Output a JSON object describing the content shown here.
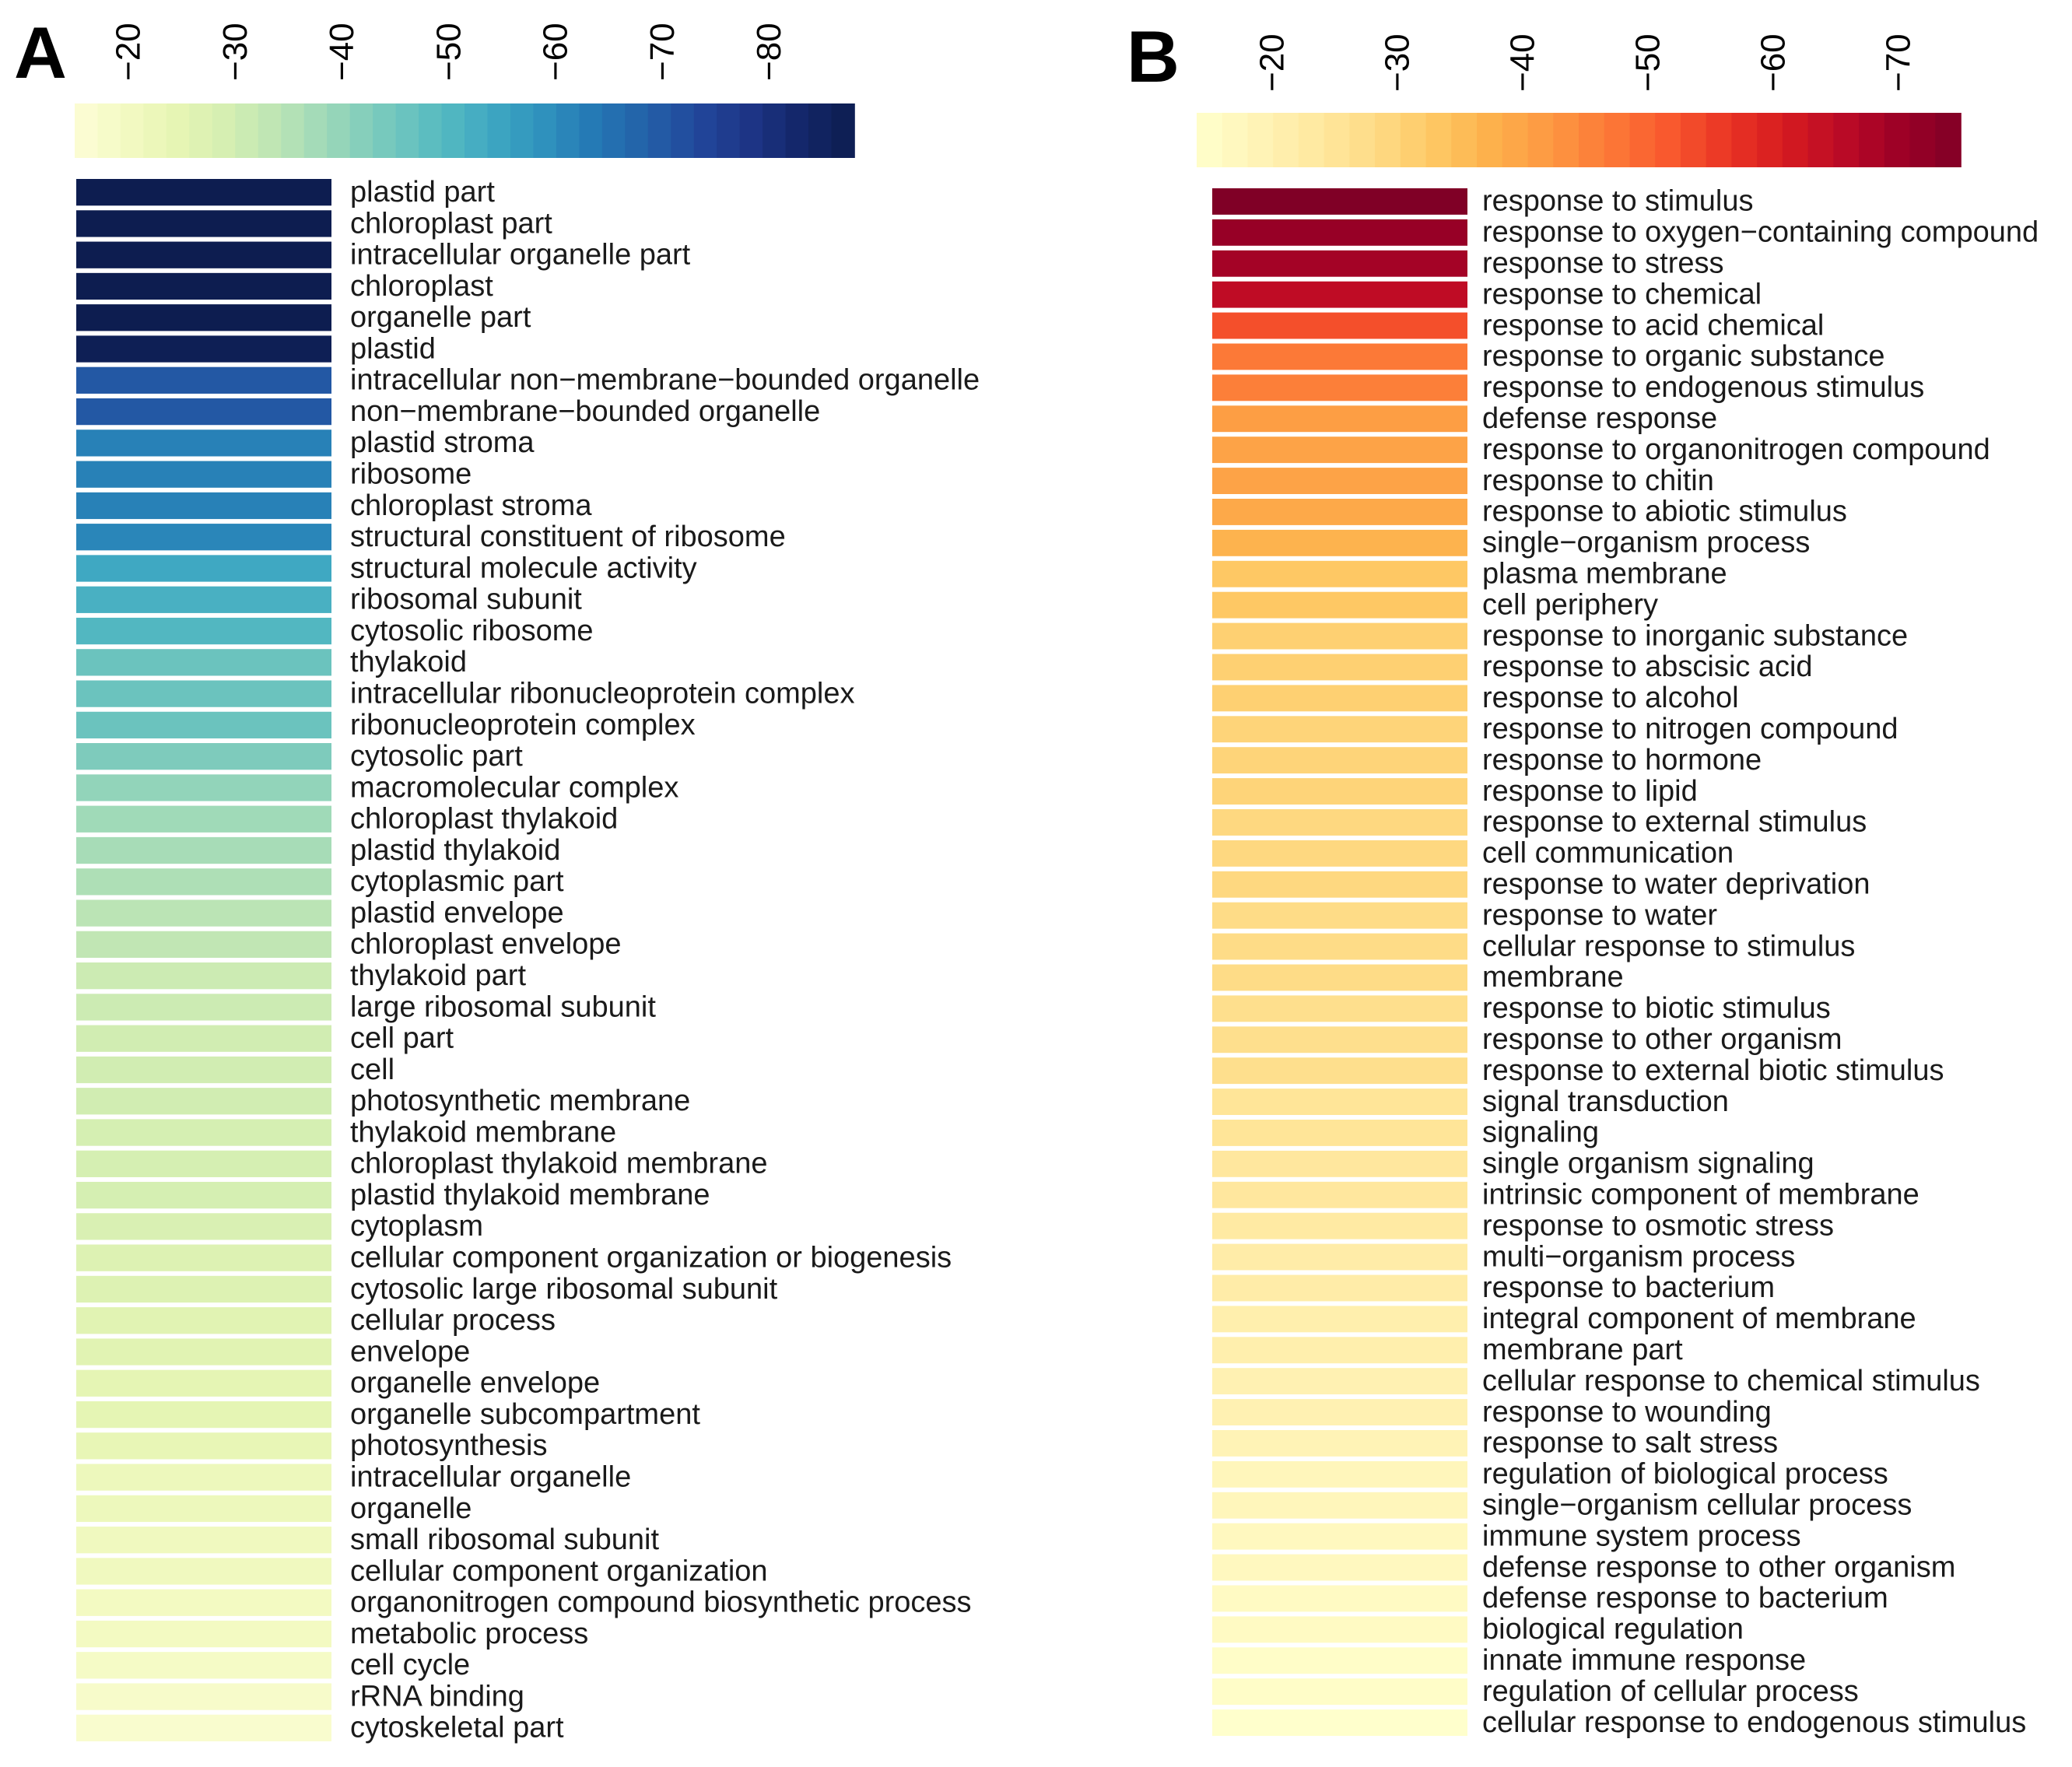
{
  "chart_data": [
    {
      "type": "heatmap",
      "panel_label": "A",
      "legend": {
        "ticks": [
          -20,
          -30,
          -40,
          -50,
          -60,
          -70,
          -80
        ],
        "tick_labels": [
          "−20",
          "−30",
          "−40",
          "−50",
          "−60",
          "−70",
          "−80"
        ],
        "range": [
          -15,
          -88
        ],
        "colors": [
          "#fdfdd7",
          "#f3fac2",
          "#e6f5b4",
          "#d3eeb2",
          "#b9e3b5",
          "#97d6b9",
          "#76c8bd",
          "#57bbc1",
          "#3fa8c2",
          "#2f92bd",
          "#2478b4",
          "#2360a8",
          "#22479b",
          "#1d3485",
          "#132668",
          "#0d1d50"
        ]
      },
      "categories": [
        "plastid part",
        "chloroplast part",
        "intracellular organelle part",
        "chloroplast",
        "organelle part",
        "plastid",
        "intracellular non−membrane−bounded organelle",
        "non−membrane−bounded organelle",
        "plastid stroma",
        "ribosome",
        "chloroplast stroma",
        "structural constituent of ribosome",
        "structural molecule activity",
        "ribosomal subunit",
        "cytosolic ribosome",
        "thylakoid",
        "intracellular ribonucleoprotein complex",
        "ribonucleoprotein complex",
        "cytosolic part",
        "macromolecular complex",
        "chloroplast thylakoid",
        "plastid thylakoid",
        "cytoplasmic part",
        "plastid envelope",
        "chloroplast envelope",
        "thylakoid part",
        "large ribosomal subunit",
        "cell part",
        "cell",
        "photosynthetic membrane",
        "thylakoid membrane",
        "chloroplast thylakoid membrane",
        "plastid thylakoid membrane",
        "cytoplasm",
        "cellular component organization or biogenesis",
        "cytosolic large ribosomal subunit",
        "cellular process",
        "envelope",
        "organelle envelope",
        "organelle subcompartment",
        "photosynthesis",
        "intracellular organelle",
        "organelle",
        "small ribosomal subunit",
        "cellular component organization",
        "organonitrogen compound biosynthetic process",
        "metabolic process",
        "cell cycle",
        "rRNA binding",
        "cytoskeletal part"
      ],
      "values": [
        -88,
        -88,
        -88,
        -88,
        -88,
        -87,
        -70,
        -70,
        -62,
        -62,
        -62,
        -61,
        -54,
        -52,
        -50,
        -46,
        -46,
        -46,
        -43,
        -40,
        -38,
        -37,
        -36,
        -34,
        -33,
        -31,
        -31,
        -30,
        -30,
        -30,
        -29,
        -29,
        -29,
        -28,
        -27,
        -27,
        -26,
        -26,
        -25,
        -25,
        -24,
        -22,
        -22,
        -21,
        -21,
        -20,
        -20,
        -19,
        -18,
        -17
      ]
    },
    {
      "type": "heatmap",
      "panel_label": "B",
      "legend": {
        "ticks": [
          -20,
          -30,
          -40,
          -50,
          -60,
          -70
        ],
        "tick_labels": [
          "−20",
          "−30",
          "−40",
          "−50",
          "−60",
          "−70"
        ],
        "range": [
          -14,
          -75
        ],
        "colors": [
          "#ffffcc",
          "#fff4b8",
          "#ffe9a1",
          "#fedc87",
          "#fec965",
          "#fdb14c",
          "#fd9842",
          "#fc7a37",
          "#f95a2e",
          "#ea3625",
          "#d61b20",
          "#bb0a26",
          "#9b0026",
          "#800026"
        ]
      },
      "categories": [
        "response to stimulus",
        "response to oxygen−containing compound",
        "response to stress",
        "response to chemical",
        "response to acid chemical",
        "response to organic substance",
        "response to endogenous stimulus",
        "defense response",
        "response to organonitrogen compound",
        "response to chitin",
        "response to abiotic stimulus",
        "single−organism process",
        "plasma membrane",
        "cell periphery",
        "response to inorganic substance",
        "response to abscisic acid",
        "response to alcohol",
        "response to nitrogen compound",
        "response to hormone",
        "response to lipid",
        "response to external stimulus",
        "cell communication",
        "response to water deprivation",
        "response to water",
        "cellular response to stimulus",
        "membrane",
        "response to biotic stimulus",
        "response to other organism",
        "response to external biotic stimulus",
        "signal transduction",
        "signaling",
        "single organism signaling",
        "intrinsic component of membrane",
        "response to osmotic stress",
        "multi−organism process",
        "response to bacterium",
        "integral component of membrane",
        "membrane part",
        "cellular response to chemical stimulus",
        "response to wounding",
        "response to salt stress",
        "regulation of biological process",
        "single−organism cellular process",
        "immune system process",
        "defense response to other organism",
        "defense response to bacterium",
        "biological regulation",
        "innate immune response",
        "regulation of cellular process",
        "cellular response to endogenous stimulus"
      ],
      "values": [
        -75,
        -71,
        -69,
        -65,
        -53,
        -47,
        -46,
        -41,
        -40,
        -40,
        -39,
        -37,
        -33,
        -33,
        -31,
        -31,
        -31,
        -30,
        -30,
        -30,
        -29,
        -29,
        -29,
        -28,
        -28,
        -28,
        -27,
        -27,
        -27,
        -25,
        -25,
        -24,
        -24,
        -23,
        -22,
        -22,
        -21,
        -21,
        -20,
        -20,
        -19,
        -18,
        -18,
        -17,
        -17,
        -16,
        -16,
        -15,
        -15,
        -14
      ]
    }
  ]
}
